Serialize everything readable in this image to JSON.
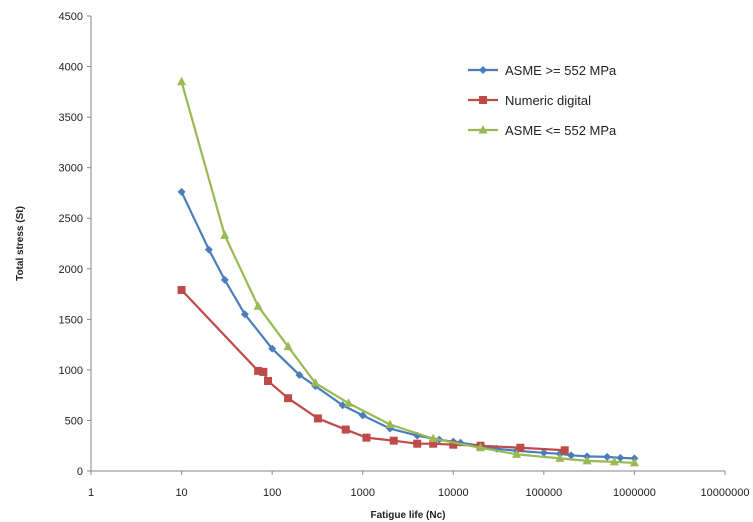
{
  "chart_data": {
    "type": "line",
    "xscale": "log",
    "xlabel": "Fatigue life (Nc)",
    "ylabel": "Total stress (St)",
    "xlim": [
      1,
      10000000
    ],
    "ylim": [
      0,
      4500
    ],
    "x_ticks": [
      "1",
      "10",
      "100",
      "1000",
      "10000",
      "100000",
      "1000000",
      "10000000"
    ],
    "y_ticks": [
      "0",
      "500",
      "1000",
      "1500",
      "2000",
      "2500",
      "3000",
      "3500",
      "4000",
      "4500"
    ],
    "grid": false,
    "legend_position": "top-right",
    "series": [
      {
        "name": "ASME >= 552 MPa",
        "color": "#4a7ebb",
        "marker": "diamond",
        "x": [
          10,
          20,
          30,
          50,
          100,
          200,
          300,
          600,
          1000,
          2000,
          4000,
          7000,
          10000,
          12000,
          20000,
          30000,
          50000,
          100000,
          150000,
          200000,
          300000,
          500000,
          700000,
          1000000
        ],
        "y": [
          2760,
          2190,
          1890,
          1550,
          1210,
          950,
          840,
          650,
          550,
          420,
          350,
          310,
          290,
          280,
          250,
          220,
          200,
          180,
          170,
          155,
          145,
          140,
          130,
          125
        ]
      },
      {
        "name": "Numeric digital",
        "color": "#be4b48",
        "marker": "square",
        "x": [
          10,
          70,
          80,
          90,
          150,
          320,
          650,
          1100,
          2200,
          4000,
          6000,
          10000,
          20000,
          55000,
          170000
        ],
        "y": [
          1790,
          990,
          980,
          890,
          720,
          520,
          410,
          330,
          300,
          270,
          270,
          260,
          250,
          230,
          205
        ]
      },
      {
        "name": "ASME <= 552 MPa",
        "color": "#98b954",
        "marker": "triangle",
        "x": [
          10,
          30,
          70,
          150,
          300,
          700,
          2000,
          6000,
          20000,
          50000,
          150000,
          300000,
          600000,
          1000000
        ],
        "y": [
          3850,
          2330,
          1630,
          1230,
          870,
          670,
          460,
          320,
          230,
          165,
          125,
          100,
          90,
          80
        ]
      }
    ]
  }
}
